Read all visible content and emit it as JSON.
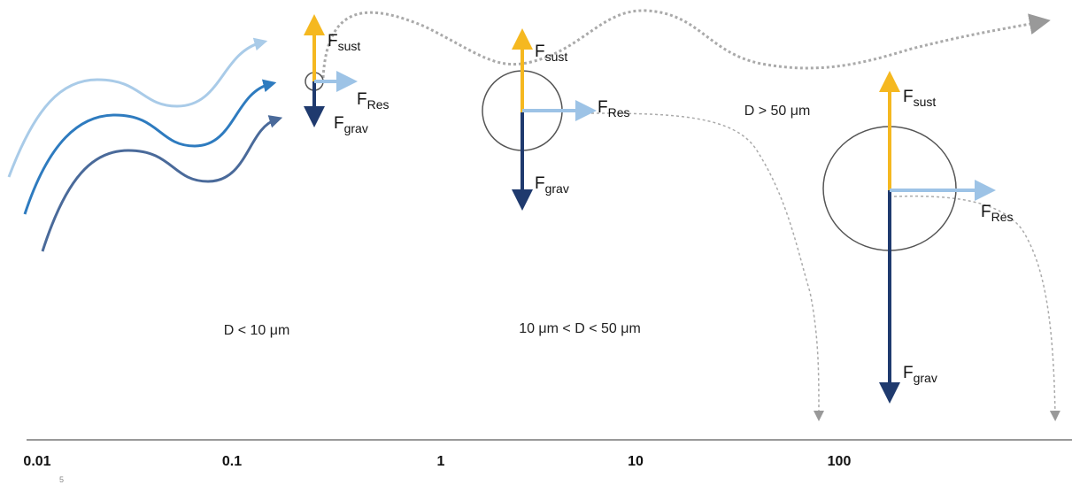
{
  "particles": [
    {
      "forces": {
        "sust": {
          "symbol": "F",
          "sub": "sust"
        },
        "res": {
          "symbol": "F",
          "sub": "Res"
        },
        "grav": {
          "symbol": "F",
          "sub": "grav"
        }
      }
    },
    {
      "forces": {
        "sust": {
          "symbol": "F",
          "sub": "sust"
        },
        "res": {
          "symbol": "F",
          "sub": "Res"
        },
        "grav": {
          "symbol": "F",
          "sub": "grav"
        }
      }
    },
    {
      "forces": {
        "sust": {
          "symbol": "F",
          "sub": "sust"
        },
        "res": {
          "symbol": "F",
          "sub": "Res"
        },
        "grav": {
          "symbol": "F",
          "sub": "grav"
        }
      }
    }
  ],
  "regions": [
    "D < 10 μm",
    "10 μm < D < 50 μm",
    "D > 50 μm"
  ],
  "axis": {
    "labels": [
      "0.01",
      "0.1",
      "1",
      "10",
      "100"
    ]
  },
  "page_number": "5"
}
